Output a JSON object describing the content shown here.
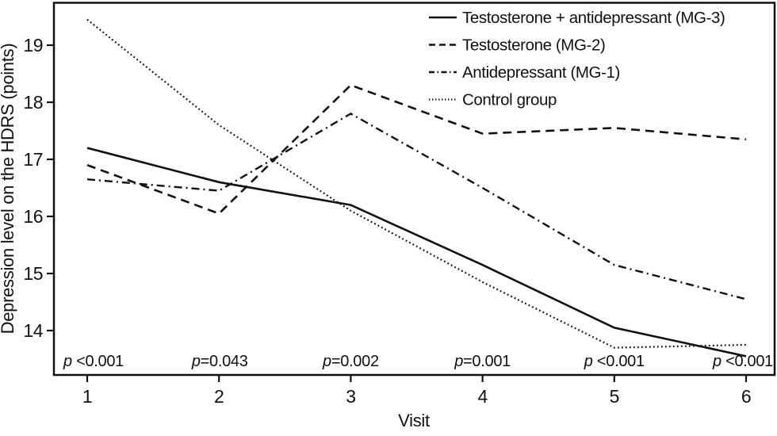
{
  "figure": {
    "background": "#ffffff",
    "line_color": "#111111"
  },
  "chart_data": {
    "type": "line",
    "title": "",
    "xlabel": "Visit",
    "ylabel": "Depression level on the HDRS (points)",
    "x": [
      1,
      2,
      3,
      4,
      5,
      6
    ],
    "x_ticks": [
      "1",
      "2",
      "3",
      "4",
      "5",
      "6"
    ],
    "y_ticks": [
      "19",
      "18",
      "17",
      "16",
      "15",
      "14"
    ],
    "ylim": [
      13.2,
      19.75
    ],
    "grid": false,
    "legend_position": "top-right-inside",
    "series": [
      {
        "name": "Testosterone + antidepressant (MG-3)",
        "style": "solid",
        "values": [
          17.2,
          16.6,
          16.2,
          15.15,
          14.05,
          13.55
        ]
      },
      {
        "name": "Testosterone (MG-2)",
        "style": "dashed",
        "values": [
          16.9,
          16.05,
          18.3,
          17.45,
          17.55,
          17.35
        ]
      },
      {
        "name": "Antidepressant (MG-1)",
        "style": "dash-dot",
        "values": [
          16.65,
          16.45,
          17.8,
          16.5,
          15.15,
          14.55
        ]
      },
      {
        "name": "Control group",
        "style": "dotted",
        "values": [
          19.45,
          17.6,
          16.1,
          14.85,
          13.7,
          13.75
        ]
      }
    ],
    "p_annotations": [
      {
        "visit": 1,
        "label": "p <0.001"
      },
      {
        "visit": 2,
        "label": "p=0.043"
      },
      {
        "visit": 3,
        "label": "p=0.002"
      },
      {
        "visit": 4,
        "label": "p=0.001"
      },
      {
        "visit": 5,
        "label": "p <0.001"
      },
      {
        "visit": 6,
        "label": "p <0.001"
      }
    ]
  }
}
